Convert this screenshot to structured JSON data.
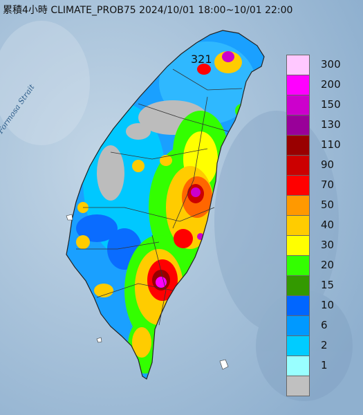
{
  "title": "累積4小時 CLIMATE_PROB75 2024/10/01 18:00~10/01 22:00",
  "max_label": "321",
  "sea_label": "Formosa Strait",
  "legend": [
    {
      "label": "300",
      "color": "#ffc8ff"
    },
    {
      "label": "200",
      "color": "#ff00ff"
    },
    {
      "label": "150",
      "color": "#cc00cc"
    },
    {
      "label": "130",
      "color": "#990099"
    },
    {
      "label": "110",
      "color": "#990000"
    },
    {
      "label": "90",
      "color": "#cc0000"
    },
    {
      "label": "70",
      "color": "#ff0000"
    },
    {
      "label": "50",
      "color": "#ff9900"
    },
    {
      "label": "40",
      "color": "#ffcc00"
    },
    {
      "label": "30",
      "color": "#ffff00"
    },
    {
      "label": "20",
      "color": "#33ff00"
    },
    {
      "label": "15",
      "color": "#339900"
    },
    {
      "label": "10",
      "color": "#0066ff"
    },
    {
      "label": "6",
      "color": "#0099ff"
    },
    {
      "label": "2",
      "color": "#00ccff"
    },
    {
      "label": "1",
      "color": "#99ffff"
    },
    {
      "label": "",
      "color": "#c0c0c0"
    }
  ]
}
